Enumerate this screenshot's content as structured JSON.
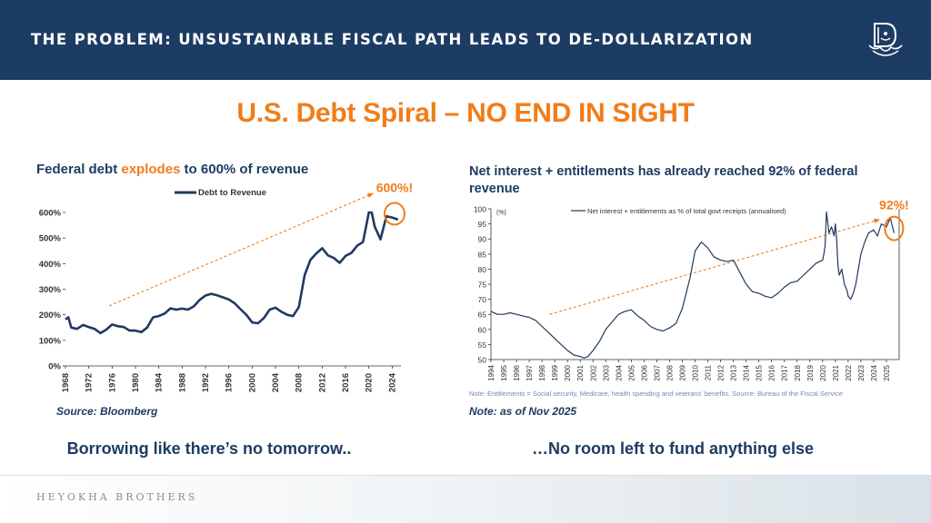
{
  "header": {
    "title": "THE PROBLEM: UNSUSTAINABLE FISCAL PATH LEADS TO DE-DOLLARIZATION",
    "logo_icon": "seal-logo-icon"
  },
  "main_title": "U.S. Debt Spiral – NO END IN SIGHT",
  "left_panel": {
    "title_prefix": "Federal debt ",
    "title_highlight": "explodes",
    "title_suffix": " to 600% of revenue",
    "source": "Source: Bloomberg",
    "caption": "Borrowing like there’s no tomorrow.."
  },
  "right_panel": {
    "title": "Net interest + entitlements has already reached 92% of federal revenue",
    "note_small": "Note: Entitlements = Social security, Medicare, health spending and veterans' benefits. Source: Bureau of the Fiscal Service",
    "source": "Note: as of Nov 2025",
    "caption": "…No room left to fund anything else"
  },
  "footer": {
    "text": "HEYOKHA BROTHERS"
  },
  "colors": {
    "navy": "#1d3c63",
    "orange": "#f07d1a",
    "series": "#1f3a5f"
  },
  "chart_data": [
    {
      "type": "line",
      "title": "Federal debt explodes to 600% of revenue",
      "legend": [
        "Debt to Revenue"
      ],
      "legend_position": "top-center",
      "annotation": "600%!",
      "ylim": [
        0,
        600
      ],
      "yticks": [
        0,
        100,
        200,
        300,
        400,
        500,
        600
      ],
      "ytick_labels": [
        "0%",
        "100%",
        "200%",
        "300%",
        "400%",
        "500%",
        "600%"
      ],
      "xlim": [
        1968,
        2025.5
      ],
      "xticks": [
        1968,
        1972,
        1976,
        1980,
        1984,
        1988,
        1992,
        1996,
        2000,
        2004,
        2008,
        2012,
        2016,
        2020,
        2024
      ],
      "trend": {
        "from": [
          1975.5,
          235
        ],
        "to": [
          2020.8,
          675
        ]
      },
      "highlight_point": [
        2024.4,
        595
      ],
      "series": [
        {
          "name": "Debt to Revenue",
          "x": [
            1968,
            1968.5,
            1969,
            1970,
            1971,
            1972,
            1973,
            1974,
            1975,
            1976,
            1977,
            1978,
            1979,
            1980,
            1981,
            1982,
            1983,
            1984,
            1985,
            1986,
            1987,
            1988,
            1989,
            1990,
            1991,
            1992,
            1993,
            1994,
            1995,
            1996,
            1997,
            1998,
            1999,
            2000,
            2001,
            2002,
            2003,
            2004,
            2005,
            2006,
            2007,
            2008,
            2009,
            2010,
            2011,
            2012,
            2013,
            2014,
            2015,
            2016,
            2017,
            2018,
            2019,
            2020,
            2020.5,
            2021,
            2022,
            2023,
            2024,
            2025
          ],
          "y": [
            182,
            190,
            150,
            145,
            160,
            152,
            145,
            128,
            142,
            162,
            155,
            152,
            138,
            138,
            132,
            150,
            190,
            195,
            205,
            225,
            220,
            224,
            220,
            233,
            258,
            275,
            282,
            276,
            268,
            260,
            245,
            222,
            200,
            170,
            167,
            187,
            220,
            228,
            212,
            200,
            195,
            230,
            355,
            415,
            440,
            460,
            432,
            422,
            403,
            430,
            442,
            470,
            485,
            600,
            600,
            545,
            495,
            585,
            580,
            572
          ]
        }
      ]
    },
    {
      "type": "line",
      "legend": [
        "Net interest + entitlements as % of total govt receipts (annualised)"
      ],
      "legend_position": "top-center",
      "annotation": "92%!",
      "yunit_label": "(%)",
      "ylim": [
        50,
        100
      ],
      "yticks": [
        50,
        55,
        60,
        65,
        70,
        75,
        80,
        85,
        90,
        95,
        100
      ],
      "xlim": [
        1994,
        2026
      ],
      "xticks": [
        1994,
        1995,
        1996,
        1997,
        1998,
        1999,
        2000,
        2001,
        2002,
        2003,
        2004,
        2005,
        2006,
        2007,
        2008,
        2009,
        2010,
        2011,
        2012,
        2013,
        2014,
        2015,
        2016,
        2017,
        2018,
        2019,
        2020,
        2021,
        2022,
        2023,
        2024,
        2025
      ],
      "trend": {
        "from": [
          1998.6,
          65
        ],
        "to": [
          2024.5,
          96.5
        ]
      },
      "highlight_point": [
        2025.6,
        93.5
      ],
      "series": [
        {
          "name": "Net interest + entitlements as % of total govt receipts (annualised)",
          "x": [
            1994,
            1994.5,
            1995,
            1995.5,
            1996,
            1996.5,
            1997,
            1997.5,
            1998,
            1998.5,
            1999,
            1999.5,
            2000,
            2000.5,
            2001,
            2001.3,
            2001.6,
            2002,
            2002.5,
            2003,
            2003.5,
            2004,
            2004.5,
            2005,
            2005.5,
            2006,
            2006.5,
            2007,
            2007.5,
            2008,
            2008.5,
            2009,
            2009.3,
            2009.6,
            2010,
            2010.5,
            2011,
            2011.5,
            2012,
            2012.5,
            2013,
            2013.5,
            2014,
            2014.5,
            2015,
            2015.5,
            2016,
            2016.5,
            2017,
            2017.5,
            2018,
            2018.5,
            2019,
            2019.5,
            2020,
            2020.1,
            2020.2,
            2020.3,
            2020.5,
            2020.7,
            2020.9,
            2021,
            2021.1,
            2021.2,
            2021.3,
            2021.5,
            2021.7,
            2021.9,
            2022,
            2022.2,
            2022.4,
            2022.6,
            2022.8,
            2023,
            2023.3,
            2023.6,
            2024,
            2024.3,
            2024.6,
            2025,
            2025.3,
            2025.6
          ],
          "y": [
            66,
            65,
            65,
            65.5,
            65,
            64.5,
            64,
            63,
            61,
            59,
            57,
            55,
            53,
            51.5,
            51,
            50.5,
            51,
            53,
            56,
            60,
            62.5,
            65,
            66,
            66.5,
            64.5,
            63,
            61,
            60,
            59.5,
            60.5,
            62,
            67,
            72,
            77,
            86,
            89,
            87,
            84,
            83,
            82.5,
            83,
            79,
            75,
            72.5,
            72,
            71,
            70.5,
            72,
            74,
            75.5,
            76,
            78,
            80,
            82,
            83,
            85,
            88,
            99,
            92,
            94,
            91,
            95,
            90,
            81,
            78,
            80,
            75,
            73,
            71,
            70,
            72,
            75,
            80,
            85,
            89,
            92,
            93,
            91,
            95,
            94,
            97,
            92
          ]
        }
      ]
    }
  ]
}
